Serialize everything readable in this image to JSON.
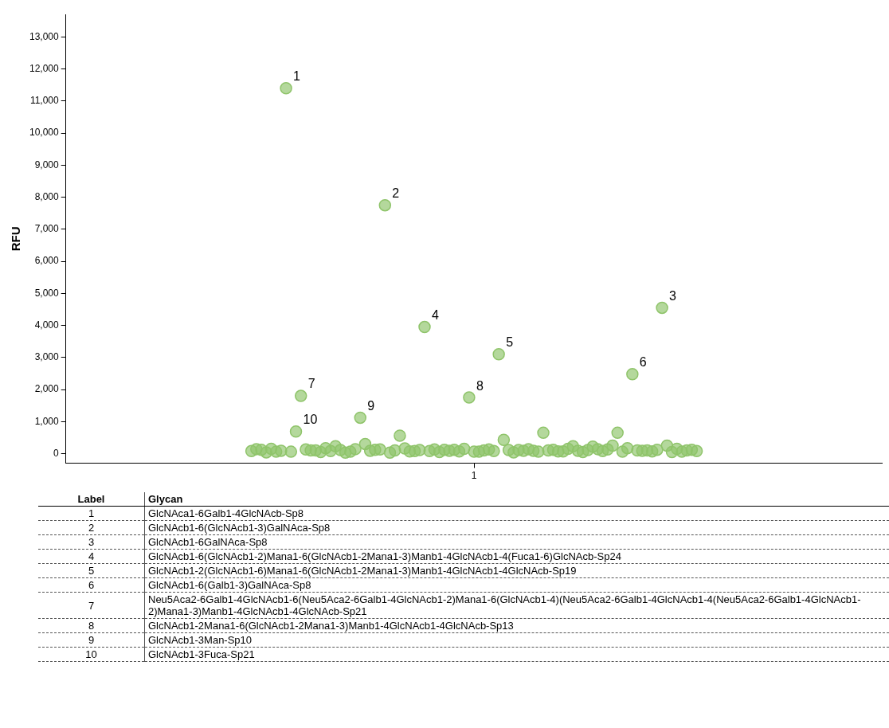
{
  "chart_data": {
    "type": "scatter",
    "ylabel": "RFU",
    "marker": "circle",
    "color": "#8fc46a",
    "ylim": [
      -300,
      13700
    ],
    "yticks": [
      {
        "value": 0,
        "label": "0"
      },
      {
        "value": 1000,
        "label": "1,000"
      },
      {
        "value": 2000,
        "label": "2,000"
      },
      {
        "value": 3000,
        "label": "3,000"
      },
      {
        "value": 4000,
        "label": "4,000"
      },
      {
        "value": 5000,
        "label": "5,000"
      },
      {
        "value": 6000,
        "label": "6,000"
      },
      {
        "value": 7000,
        "label": "7,000"
      },
      {
        "value": 8000,
        "label": "8,000"
      },
      {
        "value": 9000,
        "label": "9,000"
      },
      {
        "value": 10000,
        "label": "10,000"
      },
      {
        "value": 11000,
        "label": "11,000"
      },
      {
        "value": 12000,
        "label": "12,000"
      },
      {
        "value": 13000,
        "label": "13,000"
      }
    ],
    "categories": [
      null,
      null,
      null,
      null,
      null,
      null,
      null,
      null,
      null,
      null,
      null,
      null,
      null,
      null,
      null,
      null,
      null,
      null,
      null,
      null,
      null,
      null,
      null,
      null,
      null,
      null,
      null,
      null,
      null,
      null,
      null,
      null,
      null,
      null,
      null,
      null,
      null,
      null,
      null,
      null,
      null,
      null,
      null,
      null,
      null,
      null,
      null,
      null,
      null,
      null,
      null,
      null,
      null,
      null,
      null,
      null,
      null,
      null,
      null,
      null,
      null,
      null,
      null,
      null,
      null,
      null,
      null,
      null,
      null,
      null,
      null,
      null,
      null,
      null,
      null,
      null,
      null,
      null,
      null,
      null,
      null,
      null,
      "1",
      null,
      null,
      null,
      null,
      null,
      null,
      null,
      null,
      null,
      null,
      null,
      null,
      null,
      null,
      null,
      null,
      null,
      null,
      null,
      null,
      null,
      null,
      null,
      null,
      null,
      null,
      null,
      null,
      null,
      null,
      null,
      null,
      null,
      null,
      null,
      null,
      null,
      null,
      null,
      null,
      null,
      null,
      null,
      null,
      null,
      null,
      null,
      null,
      null,
      null,
      null,
      null,
      null,
      null,
      null,
      null,
      null,
      null,
      null,
      null,
      null,
      null,
      null,
      null,
      null,
      null,
      null,
      null,
      null,
      null,
      null,
      null,
      null,
      null,
      null,
      null,
      null,
      null,
      null,
      null,
      null,
      null
    ],
    "values": [
      null,
      null,
      null,
      null,
      null,
      null,
      null,
      null,
      null,
      null,
      null,
      null,
      null,
      null,
      null,
      null,
      null,
      null,
      null,
      null,
      null,
      null,
      null,
      null,
      null,
      null,
      null,
      null,
      null,
      null,
      null,
      null,
      null,
      null,
      null,
      null,
      null,
      80,
      140,
      120,
      40,
      150,
      60,
      90,
      11400,
      60,
      690,
      1800,
      130,
      100,
      100,
      50,
      170,
      80,
      230,
      110,
      30,
      60,
      140,
      1120,
      300,
      90,
      120,
      130,
      7750,
      30,
      100,
      560,
      160,
      70,
      80,
      110,
      3950,
      80,
      130,
      50,
      120,
      90,
      120,
      70,
      150,
      1750,
      60,
      60,
      100,
      130,
      80,
      3100,
      430,
      110,
      40,
      110,
      90,
      140,
      90,
      60,
      650,
      100,
      120,
      70,
      70,
      150,
      230,
      90,
      50,
      110,
      220,
      140,
      80,
      130,
      250,
      650,
      60,
      170,
      2480,
      100,
      90,
      100,
      70,
      120,
      4550,
      250,
      50,
      150,
      60,
      100,
      120,
      80,
      null,
      null,
      null,
      null,
      null,
      null,
      null,
      null,
      null,
      null,
      null,
      null,
      null,
      null,
      null,
      null,
      null,
      null,
      null,
      null,
      null,
      null,
      null,
      null,
      null,
      null,
      null,
      null,
      null,
      null,
      null,
      null,
      null,
      null,
      null,
      null,
      null
    ],
    "annotations": [
      "Label",
      "Glycan",
      "1",
      "GlcNAca1-6Galb1-4GlcNAcb-Sp8",
      "2",
      "GlcNAcb1-6(GlcNAcb1-3)GalNAca-Sp8",
      "3",
      "GlcNAcb1-6GalNAca-Sp8",
      "4",
      "GlcNAcb1-6(GlcNAcb1-2)Mana1-6(GlcNAcb1-2Mana1-3)Manb1-4GlcNAcb1-4(Fuca1-6)GlcNAcb-Sp24",
      "5",
      "GlcNAcb1-2(GlcNAcb1-6)Mana1-6(GlcNAcb1-2Mana1-3)Manb1-4GlcNAcb1-4GlcNAcb-Sp19",
      "6",
      "GlcNAcb1-6(Galb1-3)GalNAca-Sp8",
      "7",
      "Neu5Aca2-6Galb1-4GlcNAcb1-6(Neu5Aca2-6Galb1-4GlcNAcb1-2)Mana1-6(GlcNAcb1-4)(Neu5Aca2-6Galb1-4GlcNAcb1-4(Neu5Aca2-6Galb1-4GlcNAcb1-2)Mana1-3)Manb1-4GlcNAcb1-4GlcNAcb-Sp21",
      "8",
      "GlcNAcb1-2Mana1-6(GlcNAcb1-2Mana1-3)Manb1-4GlcNAcb1-4GlcNAcb-Sp13",
      "9",
      "GlcNAcb1-3Man-Sp10",
      "10",
      "GlcNAcb1-3Fuca-Sp21"
    ]
  }
}
